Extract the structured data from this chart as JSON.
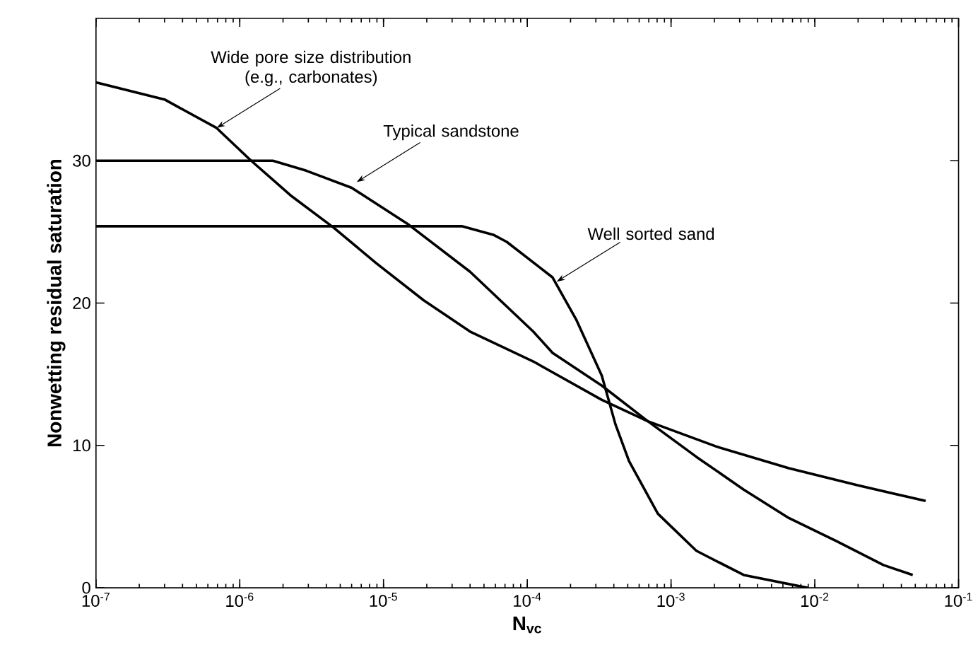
{
  "chart_data": {
    "type": "line",
    "xlabel": "N$_{vc}$",
    "ylabel": "Nonwetting residual saturation",
    "log": "x",
    "xlim": [
      1e-07,
      0.1
    ],
    "ylim": [
      0,
      40
    ],
    "xticks": [
      {
        "value": 1e-07,
        "label": "10$^{-7}$"
      },
      {
        "value": 1e-06,
        "label": "10$^{-6}$"
      },
      {
        "value": 1e-05,
        "label": "10$^{-5}$"
      },
      {
        "value": 0.0001,
        "label": "10$^{-4}$"
      },
      {
        "value": 0.001,
        "label": "10$^{-3}$"
      },
      {
        "value": 0.01,
        "label": "10$^{-2}$"
      },
      {
        "value": 0.1,
        "label": "10$^{-1}$"
      }
    ],
    "yticks": [
      0,
      10,
      20,
      30
    ],
    "series": [
      {
        "color": "#000000",
        "x": [
          1e-07,
          3e-07,
          6.9e-07,
          1.2e-06,
          2.3e-06,
          4.5e-06,
          8.9e-06,
          1.9e-05,
          4e-05,
          0.00011,
          0.00033,
          0.00069,
          0.0021,
          0.0066,
          0.02,
          0.059
        ],
        "values": [
          35.5,
          34.3,
          32.3,
          30.0,
          27.5,
          25.3,
          22.8,
          20.2,
          18.0,
          15.9,
          13.2,
          11.7,
          9.9,
          8.4,
          7.2,
          6.1
        ]
      },
      {
        "color": "#000000",
        "x": [
          1e-07,
          1.7e-06,
          2.9e-06,
          6e-06,
          1.5e-05,
          4e-05,
          0.00011,
          0.00015,
          0.00033,
          0.00069,
          0.0015,
          0.0032,
          0.0066,
          0.014,
          0.03,
          0.048
        ],
        "values": [
          30.0,
          30.0,
          29.3,
          28.1,
          25.5,
          22.2,
          18.0,
          16.5,
          14.2,
          11.7,
          9.2,
          6.9,
          4.9,
          3.3,
          1.6,
          0.9
        ]
      },
      {
        "color": "#000000",
        "x": [
          1e-07,
          3.5e-05,
          5.8e-05,
          7.2e-05,
          0.00015,
          0.00022,
          0.00033,
          0.00041,
          0.00051,
          0.00081,
          0.0015,
          0.0032,
          0.0089
        ],
        "values": [
          25.4,
          25.4,
          24.8,
          24.3,
          21.8,
          18.8,
          14.9,
          11.5,
          8.9,
          5.2,
          2.6,
          0.9,
          0
        ]
      }
    ],
    "annotations": [
      {
        "text": "Wide pore size distribution (e.g., carbonates)",
        "x": 6.9e-07,
        "y": 32.3
      },
      {
        "text": "Typical sandstone",
        "x": 6.5e-06,
        "y": 28.5
      },
      {
        "text": "Well sorted sand",
        "x": 0.00016,
        "y": 21.5
      }
    ]
  }
}
